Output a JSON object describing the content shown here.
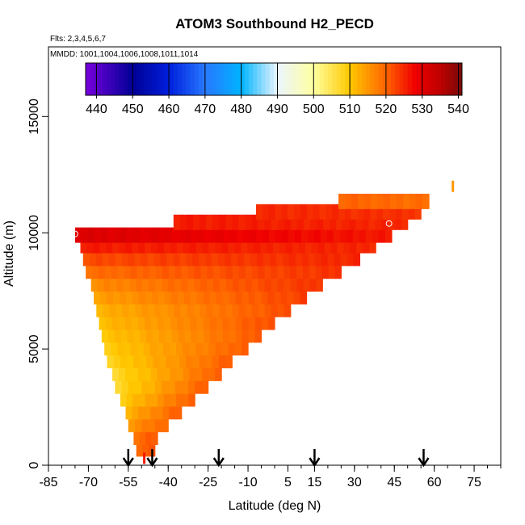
{
  "chart_data": {
    "type": "heatmap",
    "title": "ATOM3 Southbound H2_PECD",
    "flights_note": "Flts: 2,3,4,5,6,7",
    "dates_note": "MMDD: 1001,1004,1006,1008,1011,1014",
    "xlabel": "Latitude (deg N)",
    "ylabel": "Altitude (m)",
    "xlim": [
      -85,
      85
    ],
    "ylim": [
      0,
      18000
    ],
    "x_ticks": [
      -85,
      -70,
      -55,
      -40,
      -25,
      -10,
      5,
      15,
      30,
      45,
      60,
      75
    ],
    "y_ticks": [
      0,
      5000,
      10000,
      15000
    ],
    "colorbar": {
      "min": 437,
      "max": 541,
      "tick_values": [
        440,
        450,
        460,
        470,
        480,
        490,
        500,
        510,
        520,
        530,
        540
      ],
      "tick_labels": [
        "440",
        "450",
        "460",
        "470",
        "480",
        "490",
        "500",
        "510",
        "520",
        "530",
        "540"
      ]
    },
    "arrows_latitude": [
      -55,
      -46,
      -21,
      15,
      56
    ],
    "rows": [
      {
        "alt": 700,
        "x0": -52,
        "x1": -45,
        "v0": 520,
        "v1": 521
      },
      {
        "alt": 1200,
        "x0": -53,
        "x1": -44,
        "v0": 519,
        "v1": 521
      },
      {
        "alt": 1750,
        "x0": -55,
        "x1": -40,
        "v0": 515,
        "v1": 520
      },
      {
        "alt": 2300,
        "x0": -56,
        "x1": -35,
        "v0": 512,
        "v1": 521
      },
      {
        "alt": 2850,
        "x0": -58,
        "x1": -30,
        "v0": 509,
        "v1": 521
      },
      {
        "alt": 3400,
        "x0": -60,
        "x1": -25,
        "v0": 507,
        "v1": 521
      },
      {
        "alt": 3950,
        "x0": -61,
        "x1": -20,
        "v0": 507,
        "v1": 521
      },
      {
        "alt": 4500,
        "x0": -63,
        "x1": -16,
        "v0": 508,
        "v1": 521
      },
      {
        "alt": 5050,
        "x0": -64,
        "x1": -10,
        "v0": 509,
        "v1": 521
      },
      {
        "alt": 5600,
        "x0": -65,
        "x1": -5,
        "v0": 510,
        "v1": 521
      },
      {
        "alt": 6150,
        "x0": -66,
        "x1": 0,
        "v0": 511,
        "v1": 522
      },
      {
        "alt": 6700,
        "x0": -67,
        "x1": 6,
        "v0": 512,
        "v1": 522
      },
      {
        "alt": 7250,
        "x0": -68,
        "x1": 12,
        "v0": 514,
        "v1": 523
      },
      {
        "alt": 7800,
        "x0": -69,
        "x1": 18,
        "v0": 516,
        "v1": 524
      },
      {
        "alt": 8350,
        "x0": -71,
        "x1": 25,
        "v0": 519,
        "v1": 524
      },
      {
        "alt": 8900,
        "x0": -72,
        "x1": 32,
        "v0": 522,
        "v1": 525
      },
      {
        "alt": 9450,
        "x0": -73,
        "x1": 38,
        "v0": 526,
        "v1": 525
      },
      {
        "alt": 9900,
        "x0": -75,
        "x1": 44,
        "v0": 531,
        "v1": 526
      },
      {
        "alt": 10450,
        "x0": -38,
        "x1": 50,
        "v0": 526,
        "v1": 525
      },
      {
        "alt": 10900,
        "x0": -7,
        "x1": 55,
        "v0": 525,
        "v1": 524
      },
      {
        "alt": 11350,
        "x0": 24,
        "x1": 58,
        "v0": 520,
        "v1": 519
      }
    ],
    "isolated_points": [
      {
        "lat": -49,
        "alt": 300,
        "value": 526
      },
      {
        "lat": 67,
        "alt": 12000,
        "value": 515
      }
    ],
    "open_markers": [
      {
        "lat": -75,
        "alt": 9950
      },
      {
        "lat": 43,
        "alt": 10400
      }
    ]
  }
}
